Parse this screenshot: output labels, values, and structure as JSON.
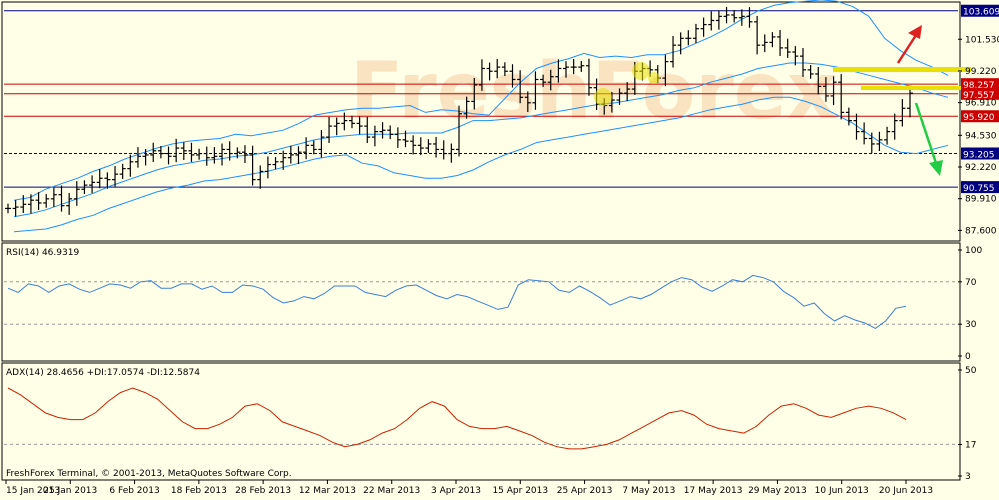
{
  "watermark": "FreshForex",
  "copyright": "FreshForex Terminal, © 2001-2013, MetaQuotes Software Corp.",
  "colors": {
    "background": "#ffffe8",
    "price_bars": "#000000",
    "bollinger": "#1e90ff",
    "level_red": "#cc0000",
    "level_blue": "#000080",
    "rsi": "#3a7fd5",
    "adx": "#cc2200",
    "highlight_yellow": "#e8e000",
    "arrow_up": "#dd2222",
    "arrow_down": "#22cc44",
    "watermark": "#f7d8b0"
  },
  "main_panel": {
    "y_axis_labels": [
      "101.530",
      "99.220",
      "96.910",
      "94.530",
      "92.220",
      "89.910",
      "87.600"
    ],
    "levels": [
      {
        "label": "103.609",
        "value": 103.609,
        "style": "blue"
      },
      {
        "label": "98.257",
        "value": 98.257,
        "style": "red"
      },
      {
        "label": "97.557",
        "value": 97.557,
        "style": "red"
      },
      {
        "label": "95.920",
        "value": 95.92,
        "style": "red"
      },
      {
        "label": "93.205",
        "value": 93.205,
        "style": "blue-dotted"
      },
      {
        "label": "90.755",
        "value": 90.755,
        "style": "blue"
      }
    ]
  },
  "rsi_panel": {
    "title": "RSI(14) 46.9319",
    "y_axis_labels": [
      "100",
      "70",
      "30",
      "0"
    ]
  },
  "adx_panel": {
    "title": "ADX(14) 28.4656 +DI:17.0574 -DI:12.5874",
    "y_axis_labels": [
      "50",
      "17",
      "3"
    ]
  },
  "x_axis_labels": [
    "15 Jan 2013",
    "25 Jan 2013",
    "6 Feb 2013",
    "18 Feb 2013",
    "28 Feb 2013",
    "12 Mar 2013",
    "22 Mar 2013",
    "3 Apr 2013",
    "15 Apr 2013",
    "25 Apr 2013",
    "7 May 2013",
    "17 May 2013",
    "29 May 2013",
    "10 Jun 2013",
    "20 Jun 2013"
  ],
  "chart_data": [
    {
      "type": "line",
      "subtype": "ohlc-bars-with-bollinger-bands",
      "x_labels": [
        "15 Jan 2013",
        "25 Jan 2013",
        "6 Feb 2013",
        "18 Feb 2013",
        "28 Feb 2013",
        "12 Mar 2013",
        "22 Mar 2013",
        "3 Apr 2013",
        "15 Apr 2013",
        "25 Apr 2013",
        "7 May 2013",
        "17 May 2013",
        "29 May 2013",
        "10 Jun 2013",
        "20 Jun 2013"
      ],
      "ylim": [
        86.9,
        104.1
      ],
      "close": [
        89.2,
        89.3,
        89.5,
        89.8,
        89.6,
        89.9,
        90.2,
        89.4,
        89.9,
        90.6,
        90.9,
        91.1,
        91.4,
        91.3,
        91.7,
        92.1,
        92.6,
        93.0,
        93.1,
        93.4,
        93.2,
        93.0,
        93.6,
        93.4,
        93.1,
        93.2,
        92.9,
        93.0,
        93.5,
        93.2,
        93.3,
        93.1,
        91.3,
        91.9,
        92.4,
        92.6,
        92.9,
        93.1,
        93.3,
        93.8,
        93.5,
        94.4,
        95.2,
        95.4,
        95.6,
        95.4,
        95.2,
        94.4,
        94.8,
        94.9,
        94.6,
        94.2,
        94.1,
        93.8,
        93.6,
        93.9,
        93.5,
        93.2,
        93.5,
        96.1,
        97.0,
        98.2,
        99.4,
        99.2,
        99.5,
        99.2,
        98.6,
        97.3,
        96.9,
        98.6,
        98.4,
        98.8,
        99.4,
        99.5,
        99.5,
        99.6,
        98.0,
        96.8,
        96.7,
        97.1,
        97.6,
        97.9,
        99.2,
        99.4,
        99.3,
        98.7,
        99.9,
        101.1,
        101.6,
        101.6,
        102.3,
        102.6,
        102.9,
        103.2,
        103.3,
        103.1,
        103.2,
        102.8,
        101.1,
        101.3,
        101.7,
        100.9,
        100.6,
        100.3,
        99.3,
        99.0,
        98.1,
        97.4,
        98.4,
        96.2,
        95.6,
        94.8,
        94.3,
        93.9,
        94.2,
        94.8,
        95.6,
        96.5,
        97.6
      ],
      "bollinger_upper": [
        89.8,
        90.0,
        90.6,
        91.0,
        91.4,
        91.9,
        92.3,
        92.8,
        93.2,
        93.6,
        93.9,
        94.1,
        94.2,
        94.3,
        94.6,
        94.5,
        94.7,
        94.9,
        95.4,
        96.0,
        96.2,
        96.4,
        96.5,
        96.5,
        96.6,
        96.7,
        96.2,
        96.4,
        96.3,
        96.1,
        96.0,
        97.2,
        98.4,
        99.4,
        99.8,
        100.1,
        100.5,
        100.2,
        100.3,
        100.2,
        100.4,
        100.4,
        100.7,
        101.2,
        101.7,
        102.3,
        103.0,
        103.6,
        104.0,
        104.2,
        104.3,
        104.4,
        104.3,
        103.9,
        103.2,
        101.6,
        100.7,
        100.0,
        99.5,
        98.9
      ],
      "bollinger_middle": [
        88.6,
        88.8,
        89.1,
        89.5,
        89.9,
        90.3,
        90.8,
        91.2,
        91.6,
        92.0,
        92.3,
        92.5,
        92.7,
        92.8,
        93.0,
        93.1,
        93.3,
        93.6,
        93.9,
        94.2,
        94.4,
        94.5,
        94.6,
        94.6,
        94.6,
        94.7,
        94.7,
        94.7,
        95.1,
        95.6,
        95.6,
        95.7,
        95.8,
        96.0,
        96.2,
        96.4,
        96.6,
        96.8,
        96.9,
        97.1,
        97.3,
        97.5,
        97.8,
        98.0,
        98.4,
        98.7,
        99.0,
        99.4,
        99.6,
        99.8,
        99.8,
        99.7,
        99.5,
        99.2,
        98.9,
        98.6,
        98.3,
        98.0,
        97.6,
        97.3
      ],
      "bollinger_lower": [
        87.5,
        87.6,
        87.7,
        88.0,
        88.4,
        88.7,
        89.2,
        89.6,
        90.0,
        90.4,
        90.7,
        90.9,
        91.2,
        91.3,
        91.5,
        91.7,
        91.9,
        92.2,
        92.5,
        92.8,
        93.0,
        93.1,
        92.5,
        92.3,
        91.8,
        91.6,
        91.4,
        91.4,
        91.6,
        92.0,
        92.6,
        93.1,
        93.5,
        94.0,
        94.2,
        94.4,
        94.6,
        94.8,
        95.0,
        95.2,
        95.4,
        95.6,
        95.8,
        96.1,
        96.4,
        96.6,
        96.8,
        97.1,
        97.3,
        97.3,
        97.0,
        96.6,
        96.0,
        95.4,
        94.6,
        93.8,
        93.3,
        93.2,
        93.5,
        93.8
      ]
    },
    {
      "type": "line",
      "title": "RSI(14) 46.9319",
      "ylim": [
        0,
        100
      ],
      "ticks": [
        100,
        70,
        30,
        0
      ],
      "values": [
        64,
        60,
        68,
        66,
        60,
        66,
        68,
        63,
        60,
        64,
        68,
        67,
        64,
        70,
        71,
        64,
        64,
        68,
        68,
        63,
        66,
        60,
        60,
        67,
        66,
        63,
        55,
        50,
        52,
        56,
        54,
        59,
        66,
        66,
        66,
        60,
        58,
        56,
        62,
        66,
        67,
        62,
        57,
        54,
        58,
        56,
        52,
        48,
        44,
        46,
        67,
        72,
        71,
        70,
        62,
        60,
        66,
        61,
        55,
        48,
        52,
        56,
        54,
        58,
        64,
        70,
        74,
        72,
        65,
        61,
        66,
        72,
        70,
        76,
        74,
        70,
        61,
        55,
        47,
        50,
        40,
        33,
        38,
        34,
        31,
        26,
        33,
        45,
        47
      ]
    },
    {
      "type": "line",
      "title": "ADX(14) 28.4656 +DI:17.0574 -DI:12.5874",
      "ylim": [
        3,
        50
      ],
      "ticks": [
        50,
        17,
        3
      ],
      "values": [
        42,
        39,
        35,
        31,
        29,
        28,
        28,
        31,
        36,
        40,
        42,
        40,
        37,
        32,
        27,
        24,
        24,
        26,
        29,
        34,
        35,
        32,
        27,
        25,
        23,
        21,
        18,
        16,
        17,
        19,
        22,
        24,
        28,
        33,
        36,
        34,
        28,
        25,
        24,
        24,
        25,
        23,
        21,
        18,
        16,
        15,
        15,
        16,
        17,
        19,
        22,
        25,
        28,
        31,
        32,
        30,
        26,
        24,
        23,
        22,
        25,
        30,
        34,
        35,
        33,
        30,
        29,
        31,
        33,
        34,
        33,
        31,
        28
      ]
    }
  ]
}
